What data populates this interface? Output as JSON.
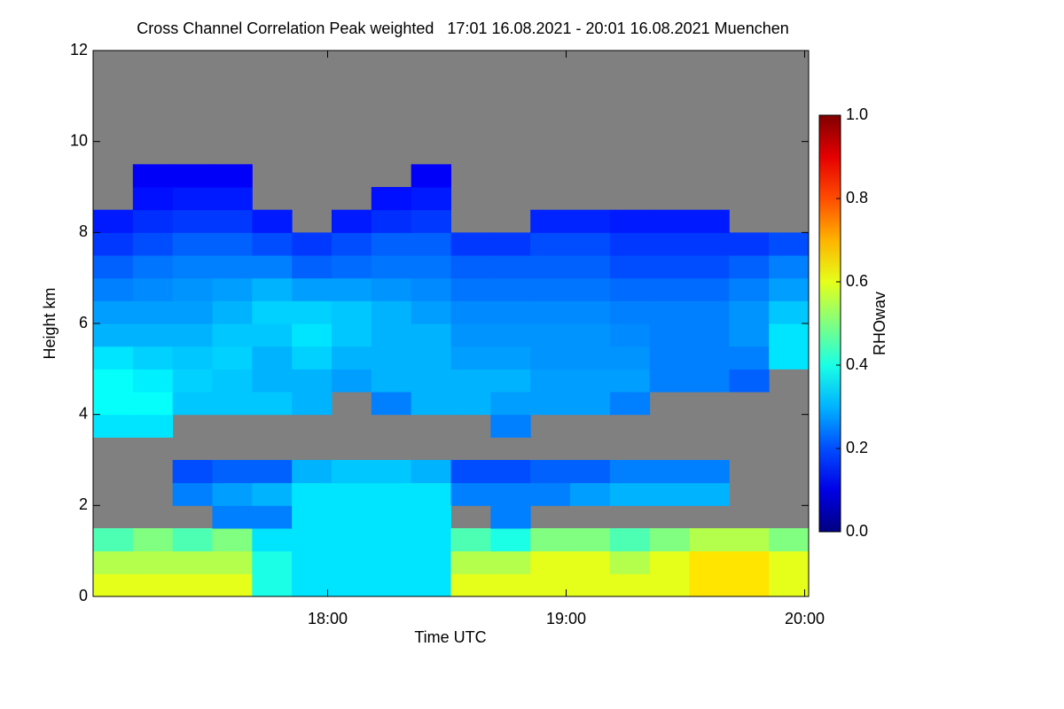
{
  "chart_data": {
    "type": "heatmap",
    "title": "Cross Channel Correlation Peak weighted   17:01 16.08.2021 - 20:01 16.08.2021 Muenchen",
    "xlabel": "Time UTC",
    "ylabel": "Height km",
    "colorbar_label": "RHOwav",
    "colormap": "jet",
    "missing_color": "#808080",
    "xlim": [
      "17:01",
      "20:01"
    ],
    "xticks": [
      "18:00",
      "19:00",
      "20:00"
    ],
    "ylim": [
      0,
      12
    ],
    "yticks": [
      0,
      2,
      4,
      6,
      8,
      10,
      12
    ],
    "zlim": [
      0,
      1
    ],
    "zticks": [
      {
        "value": 0,
        "label": "0.0"
      },
      {
        "value": 0.2,
        "label": "0.2"
      },
      {
        "value": 0.4,
        "label": "0.4"
      },
      {
        "value": 0.6,
        "label": "0.6"
      },
      {
        "value": 0.8,
        "label": "0.8"
      },
      {
        "value": 1,
        "label": "1.0"
      }
    ],
    "x": [
      "17:06",
      "17:16",
      "17:26",
      "17:36",
      "17:46",
      "17:56",
      "18:06",
      "18:16",
      "18:26",
      "18:36",
      "18:46",
      "18:56",
      "19:06",
      "19:16",
      "19:26",
      "19:36",
      "19:46",
      "19:56"
    ],
    "y": [
      0.25,
      0.75,
      1.25,
      1.75,
      2.25,
      2.75,
      3.25,
      3.75,
      4.25,
      4.75,
      5.25,
      5.75,
      6.25,
      6.75,
      7.25,
      7.75,
      8.25,
      8.75,
      9.25,
      9.75,
      10.25,
      10.75,
      11.25,
      11.75
    ],
    "z": [
      [
        0.6,
        0.6,
        0.6,
        0.6,
        0.4,
        0.35,
        0.35,
        0.35,
        0.35,
        0.6,
        0.6,
        0.6,
        0.6,
        0.6,
        0.6,
        0.65,
        0.65,
        0.6
      ],
      [
        0.55,
        0.55,
        0.55,
        0.55,
        0.4,
        0.35,
        0.35,
        0.35,
        0.35,
        0.55,
        0.55,
        0.6,
        0.6,
        0.55,
        0.6,
        0.65,
        0.65,
        0.6
      ],
      [
        0.45,
        0.5,
        0.45,
        0.5,
        0.35,
        0.35,
        0.35,
        0.35,
        0.35,
        0.45,
        0.4,
        0.5,
        0.5,
        0.45,
        0.5,
        0.55,
        0.55,
        0.5
      ],
      [
        null,
        null,
        null,
        0.25,
        0.25,
        0.35,
        0.35,
        0.35,
        0.35,
        null,
        0.25,
        null,
        null,
        null,
        null,
        null,
        null,
        null
      ],
      [
        null,
        null,
        0.25,
        0.28,
        0.3,
        0.35,
        0.35,
        0.35,
        0.35,
        0.25,
        0.25,
        0.25,
        0.28,
        0.3,
        0.3,
        0.3,
        null,
        null
      ],
      [
        null,
        null,
        0.2,
        0.22,
        0.22,
        0.3,
        0.32,
        0.32,
        0.3,
        0.2,
        0.2,
        0.22,
        0.22,
        0.25,
        0.25,
        0.25,
        null,
        null
      ],
      [
        null,
        null,
        null,
        null,
        null,
        null,
        null,
        null,
        null,
        null,
        null,
        null,
        null,
        null,
        null,
        null,
        null,
        null
      ],
      [
        0.35,
        0.35,
        null,
        null,
        null,
        null,
        null,
        null,
        null,
        null,
        0.25,
        null,
        null,
        null,
        null,
        null,
        null,
        null
      ],
      [
        0.38,
        0.38,
        0.32,
        0.32,
        0.32,
        0.3,
        null,
        0.25,
        0.3,
        0.3,
        0.28,
        0.28,
        0.28,
        0.25,
        null,
        null,
        null,
        null
      ],
      [
        0.38,
        0.36,
        0.33,
        0.32,
        0.3,
        0.3,
        0.28,
        0.3,
        0.3,
        0.3,
        0.3,
        0.28,
        0.28,
        0.28,
        0.25,
        0.25,
        0.22,
        null
      ],
      [
        0.35,
        0.33,
        0.32,
        0.33,
        0.3,
        0.33,
        0.3,
        0.3,
        0.3,
        0.28,
        0.28,
        0.27,
        0.27,
        0.27,
        0.25,
        0.25,
        0.25,
        0.35
      ],
      [
        0.3,
        0.3,
        0.3,
        0.32,
        0.32,
        0.35,
        0.32,
        0.3,
        0.3,
        0.27,
        0.27,
        0.27,
        0.27,
        0.26,
        0.25,
        0.25,
        0.27,
        0.35
      ],
      [
        0.28,
        0.28,
        0.28,
        0.3,
        0.33,
        0.33,
        0.32,
        0.3,
        0.28,
        0.26,
        0.26,
        0.26,
        0.26,
        0.25,
        0.25,
        0.25,
        0.27,
        0.32
      ],
      [
        0.25,
        0.26,
        0.27,
        0.28,
        0.3,
        0.28,
        0.28,
        0.27,
        0.26,
        0.24,
        0.24,
        0.24,
        0.24,
        0.23,
        0.23,
        0.23,
        0.25,
        0.28
      ],
      [
        0.22,
        0.24,
        0.25,
        0.25,
        0.25,
        0.22,
        0.23,
        0.24,
        0.24,
        0.22,
        0.22,
        0.22,
        0.22,
        0.2,
        0.2,
        0.2,
        0.22,
        0.25
      ],
      [
        0.18,
        0.2,
        0.22,
        0.22,
        0.2,
        0.18,
        0.2,
        0.22,
        0.22,
        0.18,
        0.18,
        0.2,
        0.2,
        0.18,
        0.18,
        0.18,
        0.18,
        0.2
      ],
      [
        0.15,
        0.17,
        0.18,
        0.18,
        0.15,
        null,
        0.15,
        0.17,
        0.18,
        null,
        null,
        0.16,
        0.16,
        0.15,
        0.15,
        0.15,
        null,
        null
      ],
      [
        null,
        0.14,
        0.15,
        0.15,
        null,
        null,
        null,
        0.14,
        0.15,
        null,
        null,
        null,
        null,
        null,
        null,
        null,
        null,
        null
      ],
      [
        null,
        0.12,
        0.12,
        0.12,
        null,
        null,
        null,
        null,
        0.12,
        null,
        null,
        null,
        null,
        null,
        null,
        null,
        null,
        null
      ],
      [
        null,
        null,
        null,
        null,
        null,
        null,
        null,
        null,
        null,
        null,
        null,
        null,
        null,
        null,
        null,
        null,
        null,
        null
      ],
      [
        null,
        null,
        null,
        null,
        null,
        null,
        null,
        null,
        null,
        null,
        null,
        null,
        null,
        null,
        null,
        null,
        null,
        null
      ],
      [
        null,
        null,
        null,
        null,
        null,
        null,
        null,
        null,
        null,
        null,
        null,
        null,
        null,
        null,
        null,
        null,
        null,
        null
      ],
      [
        null,
        null,
        null,
        null,
        null,
        null,
        null,
        null,
        null,
        null,
        null,
        null,
        null,
        null,
        null,
        null,
        null,
        null
      ],
      [
        null,
        null,
        null,
        null,
        null,
        null,
        null,
        null,
        null,
        null,
        null,
        null,
        null,
        null,
        null,
        null,
        null,
        null
      ]
    ]
  }
}
